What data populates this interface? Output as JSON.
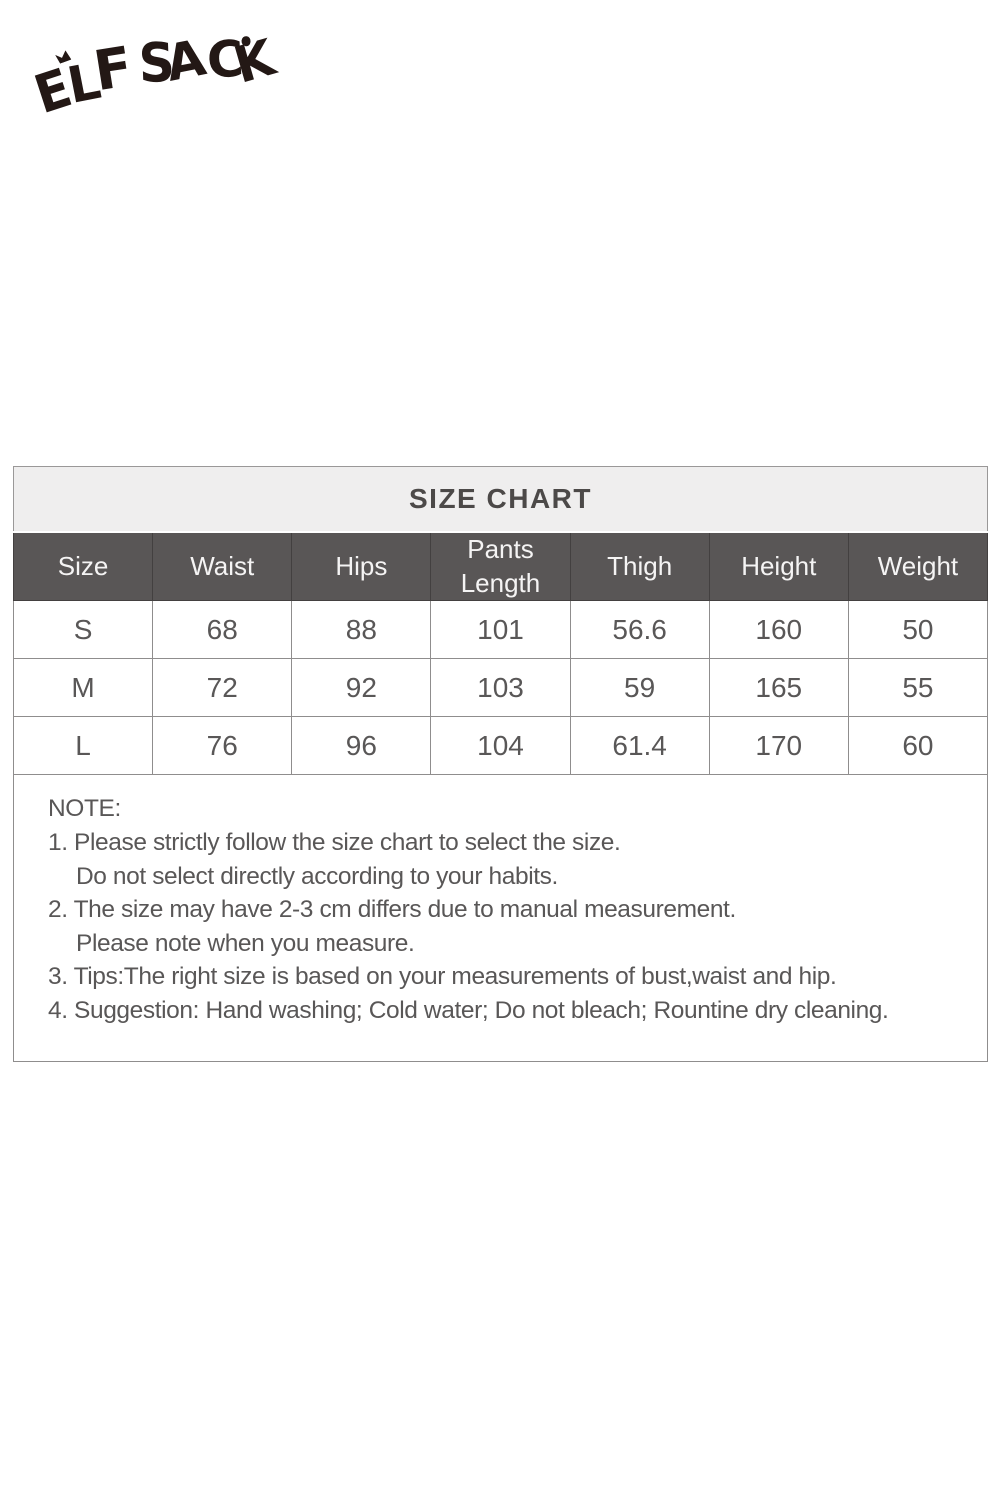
{
  "brand": {
    "logo_text": "ELF SACK"
  },
  "chart_data": {
    "type": "table",
    "title": "SIZE CHART",
    "columns": [
      "Size",
      "Waist",
      "Hips",
      "Pants Length",
      "Thigh",
      "Height",
      "Weight"
    ],
    "rows": [
      [
        "S",
        "68",
        "88",
        "101",
        "56.6",
        "160",
        "50"
      ],
      [
        "M",
        "72",
        "92",
        "103",
        "59",
        "165",
        "55"
      ],
      [
        "L",
        "76",
        "96",
        "104",
        "61.4",
        "170",
        "60"
      ]
    ]
  },
  "note": {
    "heading": "NOTE:",
    "lines": [
      "1. Please strictly follow the size chart to select the size.",
      "Do not select directly according to your habits.",
      "2. The size may have 2-3 cm differs due to manual measurement.",
      "Please note when you measure.",
      "3. Tips:The right size is based on your measurements of bust,waist and hip.",
      "4. Suggestion: Hand washing; Cold water; Do not bleach; Rountine dry cleaning."
    ]
  },
  "colors": {
    "logo": "#231815",
    "title_bg": "#efeeee",
    "title_text": "#4c4948",
    "header_bg": "#595656",
    "header_text": "#f5f4f4",
    "body_text": "#595757",
    "border": "#8f8d8d"
  }
}
